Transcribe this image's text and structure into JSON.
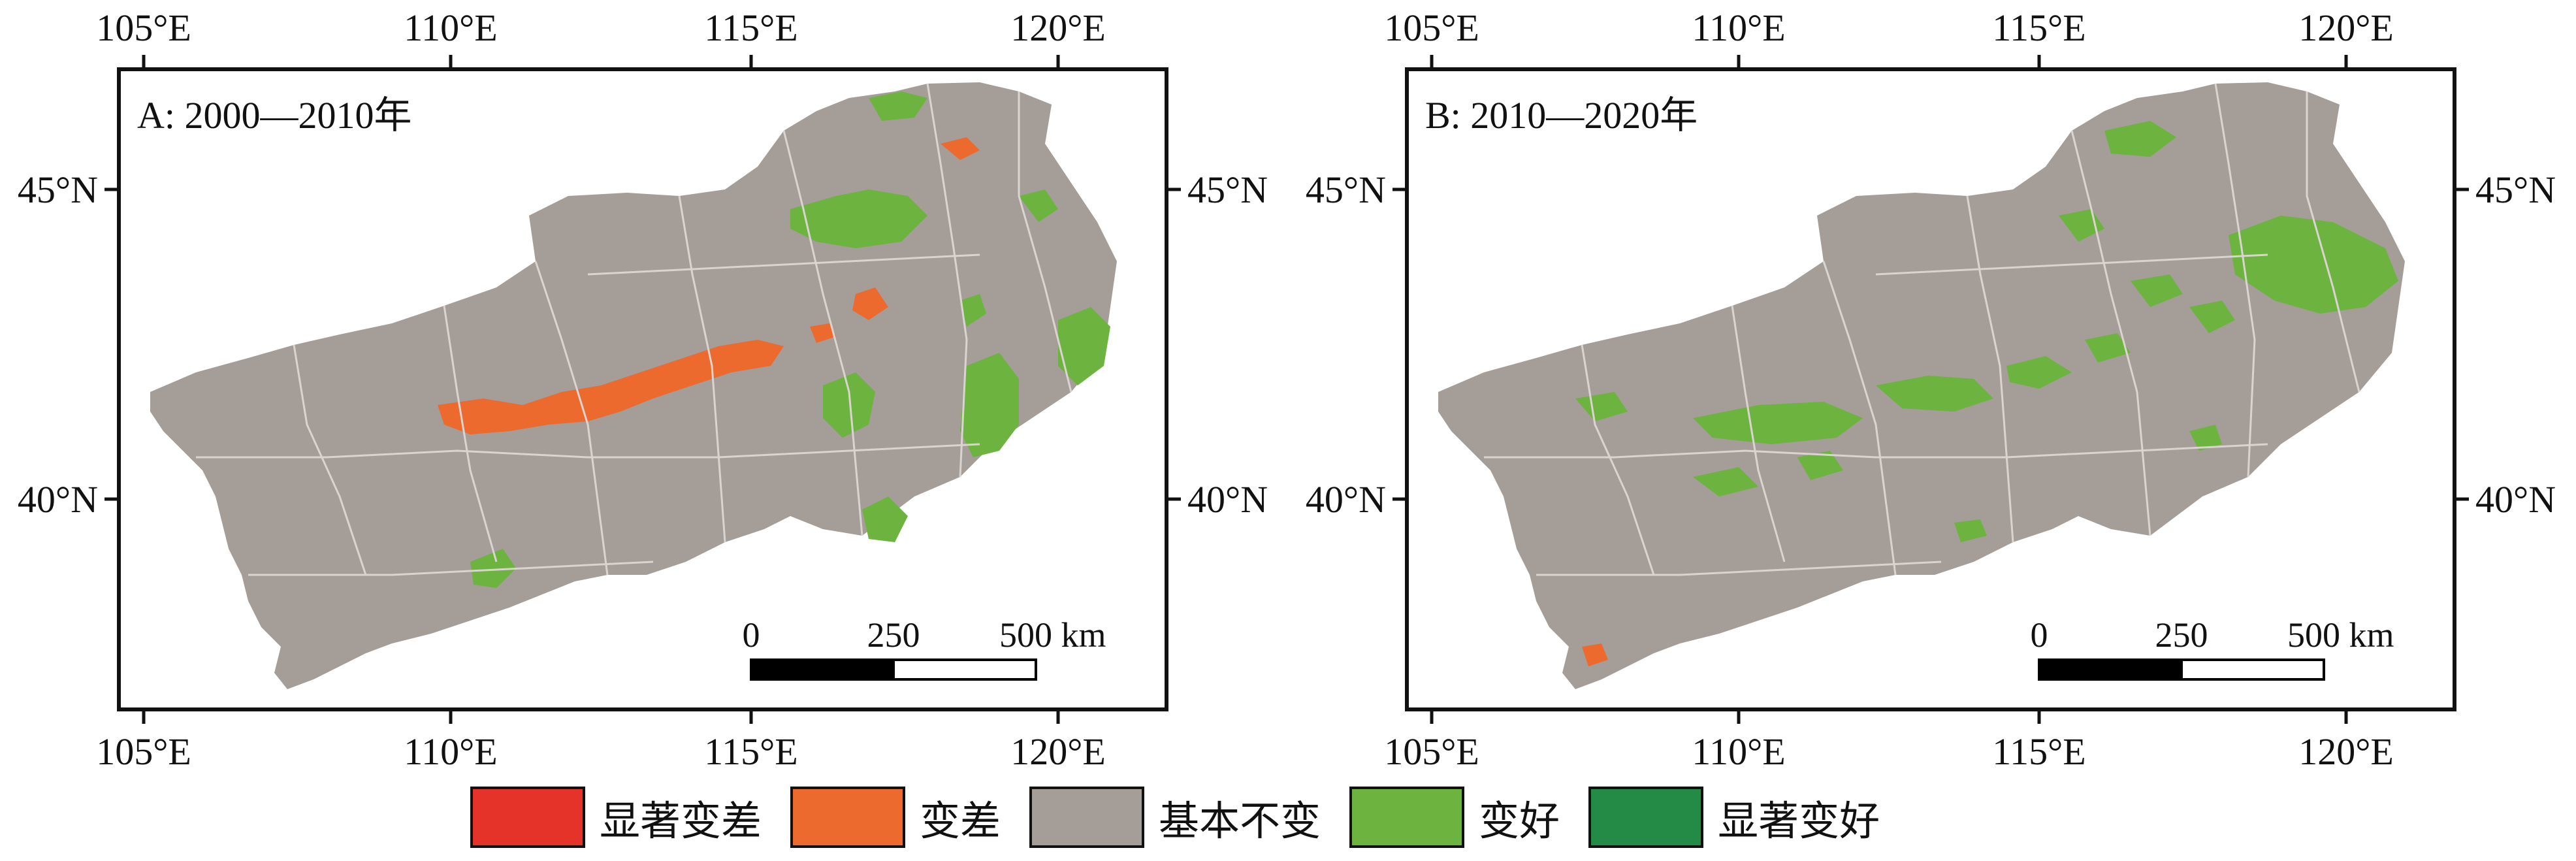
{
  "colors": {
    "significant_worse": "#e6332a",
    "worse": "#ec6a2e",
    "stable": "#a59d98",
    "better": "#6db33f",
    "significant_better": "#238b45",
    "boundary": "#d9d4d0"
  },
  "axes": {
    "lon_ticks": [
      "105°E",
      "110°E",
      "115°E",
      "120°E"
    ],
    "lat_ticks": [
      "45°N",
      "40°N"
    ]
  },
  "panels": [
    {
      "title": "A: 2000—2010年",
      "scale": {
        "labels": [
          "0",
          "250",
          "500 km"
        ]
      }
    },
    {
      "title": "B: 2010—2020年",
      "scale": {
        "labels": [
          "0",
          "250",
          "500 km"
        ]
      }
    }
  ],
  "legend": [
    {
      "label": "显著变差",
      "color": "#e6332a"
    },
    {
      "label": "变差",
      "color": "#ec6a2e"
    },
    {
      "label": "基本不变",
      "color": "#a59d98"
    },
    {
      "label": "变好",
      "color": "#6db33f"
    },
    {
      "label": "显著变好",
      "color": "#238b45"
    }
  ]
}
